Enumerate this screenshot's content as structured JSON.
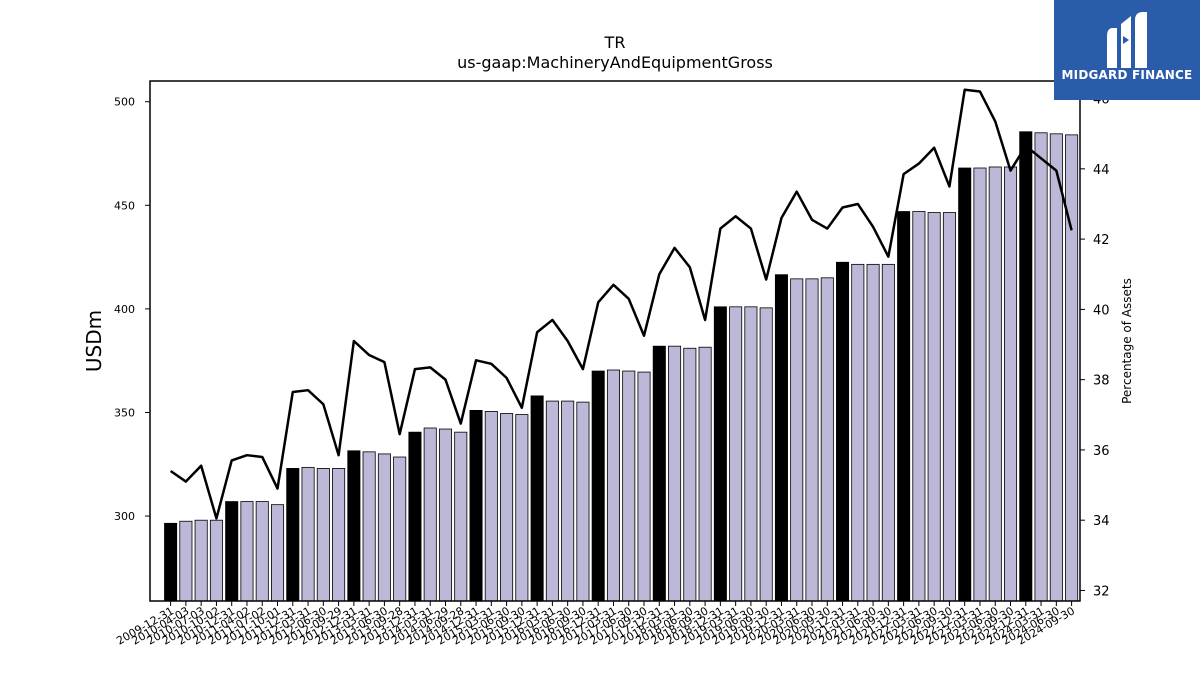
{
  "chart_data": {
    "type": "bar",
    "title": "TR",
    "subtitle": "us-gaap:MachineryAndEquipmentGross",
    "ylabel": "USDm",
    "y2label": "Percentage of Assets",
    "ylim": [
      259,
      510
    ],
    "y2lim": [
      31.7,
      46.5
    ],
    "yticks": [
      300,
      350,
      400,
      450,
      500
    ],
    "y2ticks": [
      32,
      34,
      36,
      38,
      40,
      42,
      44,
      46
    ],
    "categories": [
      "2009-12-31",
      "2010-03-31",
      "2010-06-30",
      "2010-09-30",
      "2010-12-31",
      "2011-03-31",
      "2011-06-30",
      "2011-09-30",
      "2011-12-31",
      "2012-03-31",
      "2012-06-30",
      "2012-09-30",
      "2012-12-31",
      "2013-03-31",
      "2013-06-30",
      "2013-09-30",
      "2013-12-31",
      "2014-03-31",
      "2014-06-30",
      "2014-09-30",
      "2014-12-31",
      "2015-03-31",
      "2015-06-30",
      "2015-09-30",
      "2015-12-31",
      "2016-03-31",
      "2016-06-30",
      "2016-09-30",
      "2016-12-31",
      "2017-03-31",
      "2017-06-30",
      "2017-09-30",
      "2017-12-31",
      "2018-03-31",
      "2018-06-30",
      "2018-09-30",
      "2018-12-31",
      "2019-03-31",
      "2019-06-30",
      "2019-09-30",
      "2019-12-31",
      "2020-03-31",
      "2020-06-30",
      "2020-09-30",
      "2020-12-31",
      "2021-03-31",
      "2021-06-30",
      "2021-09-30",
      "2021-12-31",
      "2022-03-31",
      "2022-06-30",
      "2022-09-30",
      "2022-12-31",
      "2023-03-31",
      "2023-06-30",
      "2023-09-30",
      "2023-12-31",
      "2024-03-31",
      "2024-06-30",
      "2024-09-30"
    ],
    "tick_labels": [
      "2009-12-31",
      "2010-04-03",
      "2010-07-03",
      "2010-10-02",
      "2010-12-31",
      "2011-04-02",
      "2011-07-02",
      "2011-10-01",
      "2011-12-31",
      "2012-03-31",
      "2012-06-30",
      "2012-09-29",
      "2012-12-31",
      "2013-03-31",
      "2013-06-30",
      "2013-09-28",
      "2013-12-31",
      "2014-03-31",
      "2014-06-29",
      "2014-09-28",
      "2014-12-31",
      "2015-03-31",
      "2015-06-30",
      "2015-09-30",
      "2015-12-31",
      "2016-03-31",
      "2016-06-30",
      "2016-09-30",
      "2016-12-31",
      "2017-03-31",
      "2017-06-30",
      "2017-09-30",
      "2017-12-31",
      "2018-03-31",
      "2018-06-30",
      "2018-09-30",
      "2018-12-31",
      "2019-03-31",
      "2019-06-30",
      "2019-09-30",
      "2019-12-31",
      "2020-03-31",
      "2020-06-30",
      "2020-09-30",
      "2020-12-31",
      "2021-03-31",
      "2021-06-30",
      "2021-09-30",
      "2021-12-31",
      "2022-03-31",
      "2022-06-30",
      "2022-09-30",
      "2022-12-31",
      "2023-03-31",
      "2023-06-30",
      "2023-09-30",
      "2023-12-31",
      "2024-03-31",
      "2024-06-30",
      "2024-09-30"
    ],
    "series": [
      {
        "axis": "left",
        "kind": "bar",
        "values": [
          296.5,
          297.5,
          298,
          298,
          307,
          307,
          307,
          305.5,
          323,
          323.5,
          323,
          323,
          331.5,
          331,
          330,
          328.5,
          340.5,
          342.5,
          342,
          340.5,
          351,
          350.5,
          349.5,
          349,
          358,
          355.5,
          355.5,
          355,
          370,
          370.5,
          370,
          369.5,
          382,
          382,
          381,
          381.5,
          401,
          401,
          401,
          400.5,
          416.5,
          414.5,
          414.5,
          415,
          422.5,
          421.5,
          421.5,
          421.5,
          447,
          447,
          446.5,
          446.5,
          468,
          468,
          468.5,
          468.5,
          485.5,
          485,
          484.5,
          484
        ]
      },
      {
        "axis": "right",
        "kind": "line",
        "values": [
          35.4,
          35.1,
          35.55,
          34.05,
          35.7,
          35.85,
          35.8,
          34.9,
          37.65,
          37.7,
          37.3,
          35.85,
          39.1,
          38.7,
          38.5,
          36.45,
          38.3,
          38.35,
          38.0,
          36.75,
          38.55,
          38.45,
          38.05,
          37.2,
          39.35,
          39.7,
          39.1,
          38.3,
          40.2,
          40.7,
          40.3,
          39.25,
          41.0,
          41.75,
          41.2,
          39.7,
          42.3,
          42.65,
          42.3,
          40.85,
          42.6,
          43.35,
          42.55,
          42.3,
          42.9,
          43.0,
          42.35,
          41.5,
          43.85,
          44.15,
          44.6,
          43.5,
          46.25,
          46.2,
          45.35,
          43.95,
          44.65,
          44.3,
          43.95,
          42.25
        ]
      }
    ],
    "bar_colors": {
      "year_end": "#000000",
      "quarter": "#bcb8d8"
    },
    "line_color": "#000000",
    "grid": false
  },
  "brand": {
    "name": "MIDGARD FINANCE",
    "icon": "midgard-m-logo-icon",
    "color": "#2a5caa"
  }
}
